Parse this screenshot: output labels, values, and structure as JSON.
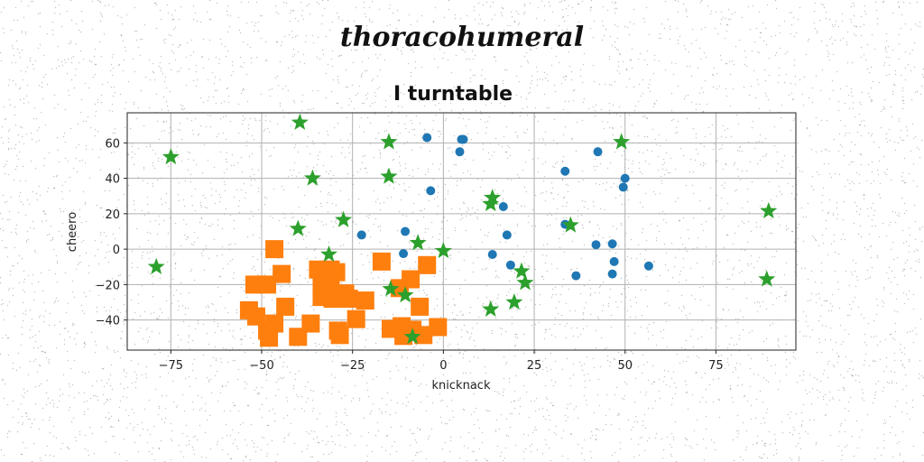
{
  "header": {
    "title": "thoracohumeral"
  },
  "chart_data": {
    "type": "scatter",
    "title": "I turntable",
    "xlabel": "knicknack",
    "ylabel": "cheero",
    "xlim": [
      -87,
      97
    ],
    "ylim": [
      -57,
      77
    ],
    "xticks": [
      -75,
      -50,
      -25,
      0,
      25,
      50,
      75
    ],
    "xtick_labels": [
      "−75",
      "−50",
      "−25",
      "0",
      "25",
      "50",
      "75"
    ],
    "yticks": [
      -40,
      -20,
      0,
      20,
      40,
      60
    ],
    "ytick_labels": [
      "−40",
      "−20",
      "0",
      "20",
      "40",
      "60"
    ],
    "grid": true,
    "legend": "none",
    "series": [
      {
        "marker": "circle",
        "color": "#1f77b4",
        "points": [
          [
            -4.5,
            63
          ],
          [
            5.5,
            62
          ],
          [
            5,
            62
          ],
          [
            4.5,
            55
          ],
          [
            -3.5,
            33
          ],
          [
            -10.5,
            10
          ],
          [
            -11,
            -2.5
          ],
          [
            -22.5,
            8
          ],
          [
            13.5,
            -3
          ],
          [
            16.5,
            24
          ],
          [
            17.5,
            8
          ],
          [
            18.5,
            -9
          ],
          [
            33.5,
            44
          ],
          [
            33.5,
            14
          ],
          [
            42.5,
            55
          ],
          [
            42,
            2.5
          ],
          [
            46.5,
            3
          ],
          [
            47,
            -7
          ],
          [
            46.5,
            -14
          ],
          [
            49.5,
            35
          ],
          [
            50,
            40
          ],
          [
            56.5,
            -9.5
          ],
          [
            36.5,
            -15
          ]
        ]
      },
      {
        "marker": "square",
        "color": "#ff7f0e",
        "points": [
          [
            -46.5,
            0
          ],
          [
            -44.5,
            -14
          ],
          [
            -52,
            -20
          ],
          [
            -48.5,
            -20
          ],
          [
            -53.5,
            -34.5
          ],
          [
            -51.5,
            -38
          ],
          [
            -46.5,
            -42
          ],
          [
            -48.5,
            -46
          ],
          [
            -48,
            -50
          ],
          [
            -43.5,
            -32.5
          ],
          [
            -40,
            -49.5
          ],
          [
            -36.5,
            -42
          ],
          [
            -34.5,
            -11.5
          ],
          [
            -31,
            -11.5
          ],
          [
            -29.5,
            -13
          ],
          [
            -33.5,
            -20
          ],
          [
            -31,
            -22
          ],
          [
            -33.5,
            -27
          ],
          [
            -30.5,
            -28
          ],
          [
            -27,
            -25
          ],
          [
            -26,
            -28
          ],
          [
            -21.5,
            -29
          ],
          [
            -24,
            -39.5
          ],
          [
            -29,
            -46
          ],
          [
            -28.5,
            -48.5
          ],
          [
            -17,
            -7
          ],
          [
            -9,
            -17
          ],
          [
            -12,
            -22
          ],
          [
            -4.5,
            -9
          ],
          [
            -6.5,
            -32.5
          ],
          [
            -14.5,
            -45
          ],
          [
            -11.5,
            -43.5
          ],
          [
            -8.5,
            -45.5
          ],
          [
            -11,
            -49
          ],
          [
            -5.5,
            -48.5
          ],
          [
            -1.5,
            -44
          ]
        ]
      },
      {
        "marker": "star",
        "color": "#2ca02c",
        "points": [
          [
            -39.5,
            71.5
          ],
          [
            -15,
            60.5
          ],
          [
            -75,
            52
          ],
          [
            -36,
            40
          ],
          [
            -15,
            41
          ],
          [
            -40,
            11.5
          ],
          [
            -27.5,
            16.5
          ],
          [
            -31.5,
            -3
          ],
          [
            -7,
            3.5
          ],
          [
            0,
            -1
          ],
          [
            -79,
            -10
          ],
          [
            -14.5,
            -22.5
          ],
          [
            -10.5,
            -26
          ],
          [
            -8.5,
            -49.5
          ],
          [
            13.5,
            29
          ],
          [
            13,
            25.5
          ],
          [
            35,
            13.5
          ],
          [
            49,
            60.5
          ],
          [
            89.5,
            21.5
          ],
          [
            89,
            -17
          ],
          [
            21.5,
            -12.5
          ],
          [
            22.5,
            -19
          ],
          [
            19.5,
            -30
          ],
          [
            13,
            -34
          ]
        ]
      }
    ]
  }
}
